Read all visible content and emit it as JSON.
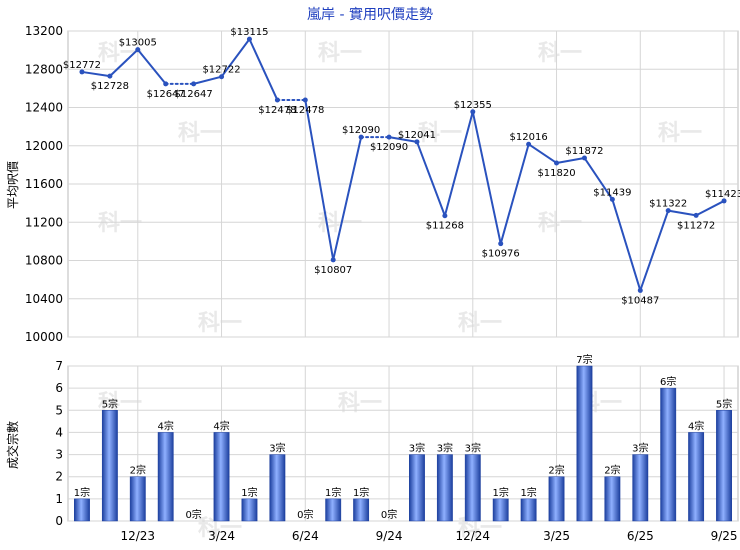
{
  "chart_data": [
    {
      "type": "line",
      "title": "嵐岸 - 實用呎價走勢",
      "ylabel": "平均呎價",
      "ylim": [
        10000,
        13200
      ],
      "yticks": [
        10000,
        10400,
        10800,
        11200,
        11600,
        12000,
        12400,
        12800,
        13200
      ],
      "value_prefix": "$",
      "grid": true,
      "color": "#2a52be",
      "x": [
        "2023-10",
        "2023-11",
        "2023-12",
        "2024-01",
        "2024-02",
        "2024-03",
        "2024-04",
        "2024-05",
        "2024-06",
        "2024-07",
        "2024-08",
        "2024-09",
        "2024-10",
        "2024-11",
        "2024-12",
        "2025-01",
        "2025-02",
        "2025-03",
        "2025-04",
        "2025-05",
        "2025-06",
        "2025-07",
        "2025-08",
        "2025-09"
      ],
      "values": [
        12772,
        12728,
        13005,
        12647,
        12647,
        12722,
        13115,
        12478,
        12478,
        10807,
        12090,
        12090,
        12041,
        11268,
        12355,
        10976,
        12016,
        11820,
        11872,
        11439,
        10487,
        11322,
        11272,
        11423
      ],
      "estimated": [
        false,
        false,
        false,
        false,
        true,
        false,
        false,
        false,
        true,
        false,
        false,
        true,
        false,
        false,
        false,
        false,
        false,
        false,
        false,
        false,
        false,
        false,
        false,
        false
      ]
    },
    {
      "type": "bar",
      "ylabel": "成交宗數",
      "ylim": [
        0,
        7
      ],
      "yticks": [
        0,
        1,
        2,
        3,
        4,
        5,
        6,
        7
      ],
      "value_suffix": "宗",
      "grid": true,
      "x": [
        "2023-10",
        "2023-11",
        "2023-12",
        "2024-01",
        "2024-02",
        "2024-03",
        "2024-04",
        "2024-05",
        "2024-06",
        "2024-07",
        "2024-08",
        "2024-09",
        "2024-10",
        "2024-11",
        "2024-12",
        "2025-01",
        "2025-02",
        "2025-03",
        "2025-04",
        "2025-05",
        "2025-06",
        "2025-07",
        "2025-08",
        "2025-09"
      ],
      "values": [
        1,
        5,
        2,
        4,
        0,
        4,
        1,
        3,
        0,
        1,
        1,
        0,
        3,
        3,
        3,
        1,
        1,
        2,
        7,
        2,
        3,
        6,
        4,
        5
      ],
      "xtick_labels": [
        "12/23",
        "3/24",
        "6/24",
        "9/24",
        "12/24",
        "3/25",
        "6/25",
        "9/25"
      ],
      "xtick_positions": [
        2,
        5,
        8,
        11,
        14,
        17,
        20,
        23
      ],
      "color": "#3a63c8"
    }
  ],
  "watermark": "科一"
}
